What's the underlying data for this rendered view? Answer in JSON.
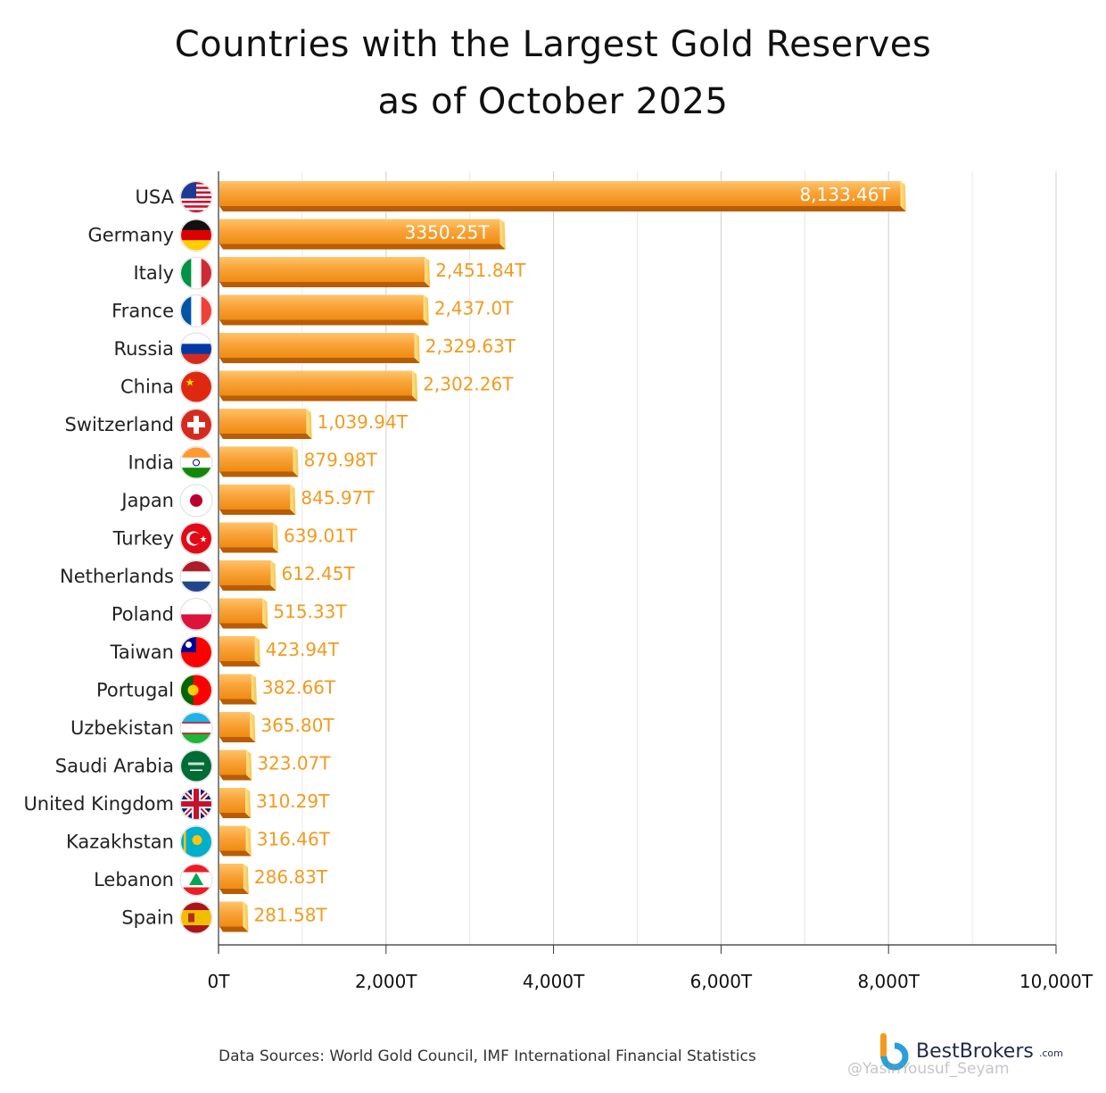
{
  "chart_data": {
    "type": "bar",
    "orientation": "horizontal",
    "title_lines": [
      "Countries with the Largest Gold Reserves",
      "as of October 2025"
    ],
    "categories": [
      "USA",
      "Germany",
      "Italy",
      "France",
      "Russia",
      "China",
      "Switzerland",
      "India",
      "Japan",
      "Turkey",
      "Netherlands",
      "Poland",
      "Taiwan",
      "Portugal",
      "Uzbekistan",
      "Saudi Arabia",
      "United Kingdom",
      "Kazakhstan",
      "Lebanon",
      "Spain"
    ],
    "values": [
      8133.46,
      3350.25,
      2451.84,
      2437.0,
      2329.63,
      2302.26,
      1039.94,
      879.98,
      845.97,
      639.01,
      612.45,
      515.33,
      423.94,
      382.66,
      365.8,
      323.07,
      310.29,
      316.46,
      286.83,
      281.58
    ],
    "value_labels": [
      "8,133.46T",
      "3350.25T",
      "2,451.84T",
      "2,437.0T",
      "2,329.63T",
      "2,302.26T",
      "1,039.94T",
      "879.98T",
      "845.97T",
      "639.01T",
      "612.45T",
      "515.33T",
      "423.94T",
      "382.66T",
      "365.80T",
      "323.07T",
      "310.29T",
      "316.46T",
      "286.83T",
      "281.58T"
    ],
    "flags": [
      "flag-usa-icon",
      "flag-germany-icon",
      "flag-italy-icon",
      "flag-france-icon",
      "flag-russia-icon",
      "flag-china-icon",
      "flag-switzerland-icon",
      "flag-india-icon",
      "flag-japan-icon",
      "flag-turkey-icon",
      "flag-netherlands-icon",
      "flag-poland-icon",
      "flag-taiwan-icon",
      "flag-portugal-icon",
      "flag-uzbekistan-icon",
      "flag-saudi-arabia-icon",
      "flag-united-kingdom-icon",
      "flag-kazakhstan-icon",
      "flag-lebanon-icon",
      "flag-spain-icon"
    ],
    "x_ticks": [
      0,
      2000,
      4000,
      6000,
      8000,
      10000
    ],
    "x_tick_labels": [
      "0T",
      "2,000T",
      "4,000T",
      "6,000T",
      "8,000T",
      "10,000T"
    ],
    "xlim": [
      0,
      10000
    ],
    "grid": true,
    "colors": {
      "bar_top": "#fdb14a",
      "bar_bottom": "#f08f17",
      "bar_edge": "#b85d05",
      "bar_end": "#ffd66b",
      "label_inside": "#ffffff",
      "label_outside": "#f39a1e"
    }
  },
  "source_note": "Data Sources: World Gold Council, IMF International Financial Statistics",
  "brand": {
    "name": "BestBrokers",
    "suffix": ".com",
    "icon": "bestbrokers-logo-icon"
  },
  "watermark": "@YasinYousuf_Seyam"
}
